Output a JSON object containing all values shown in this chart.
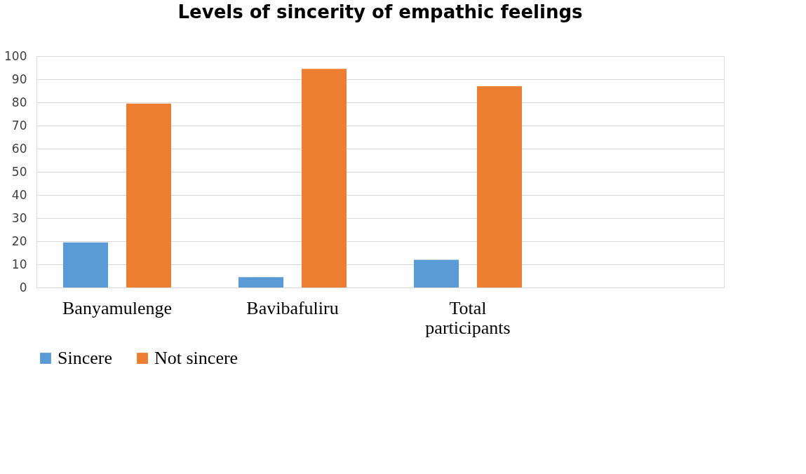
{
  "chart_data": {
    "type": "bar",
    "title": "Levels of sincerity of empathic feelings",
    "categories": [
      "Banyamulenge",
      "Bavibafuliru",
      "Total participants"
    ],
    "series": [
      {
        "name": "Sincere",
        "color": "#5b9bd5",
        "values": [
          19.5,
          4.5,
          12
        ]
      },
      {
        "name": "Not sincere",
        "color": "#ed7d31",
        "values": [
          79.5,
          94.5,
          87
        ]
      }
    ],
    "ylim": [
      0,
      100
    ],
    "yticks": [
      0,
      10,
      20,
      30,
      40,
      50,
      60,
      70,
      80,
      90,
      100
    ],
    "grid": "y",
    "legend": "bottom"
  }
}
